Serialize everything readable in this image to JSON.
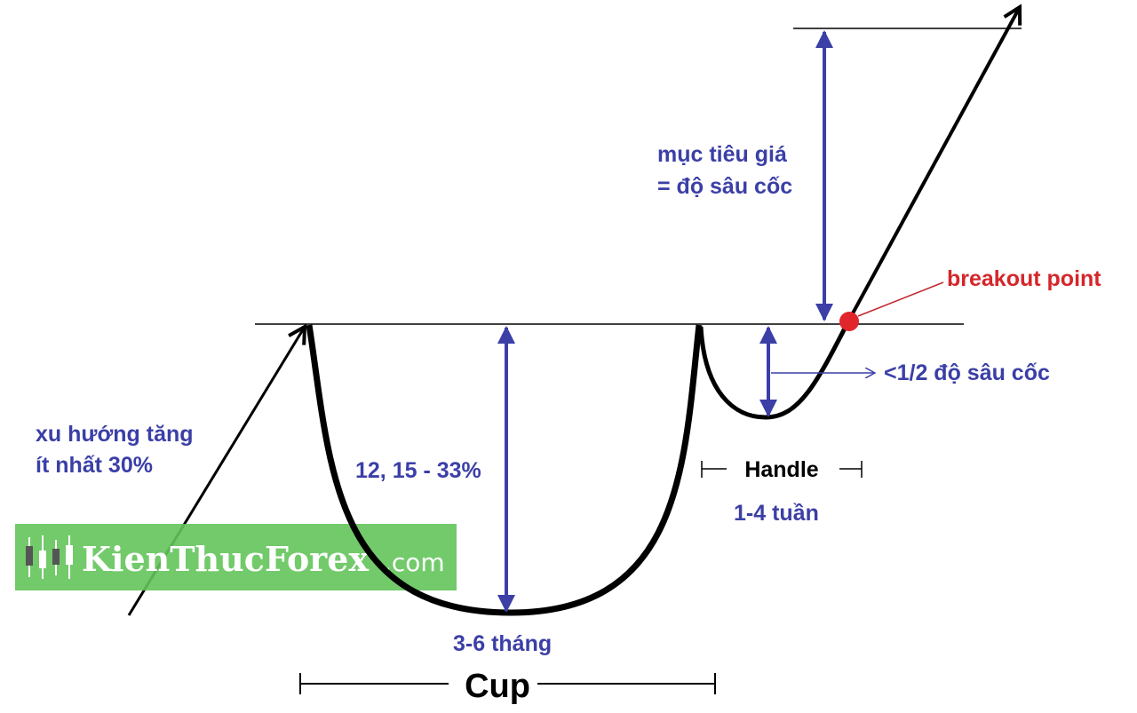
{
  "labels": {
    "target": [
      "mục tiêu giá",
      "= độ sâu cốc"
    ],
    "breakout": "breakout point",
    "handle_depth": "<1/2 độ sâu cốc",
    "trend": [
      "xu hướng tăng",
      "ít nhất 30%"
    ],
    "cup_depth": "12, 15 - 33%",
    "handle": "Handle",
    "handle_duration": "1-4 tuần",
    "cup_duration": "3-6 tháng",
    "cup": "Cup"
  },
  "watermark": {
    "name": "KienThucForex",
    "suffix": ".com"
  }
}
